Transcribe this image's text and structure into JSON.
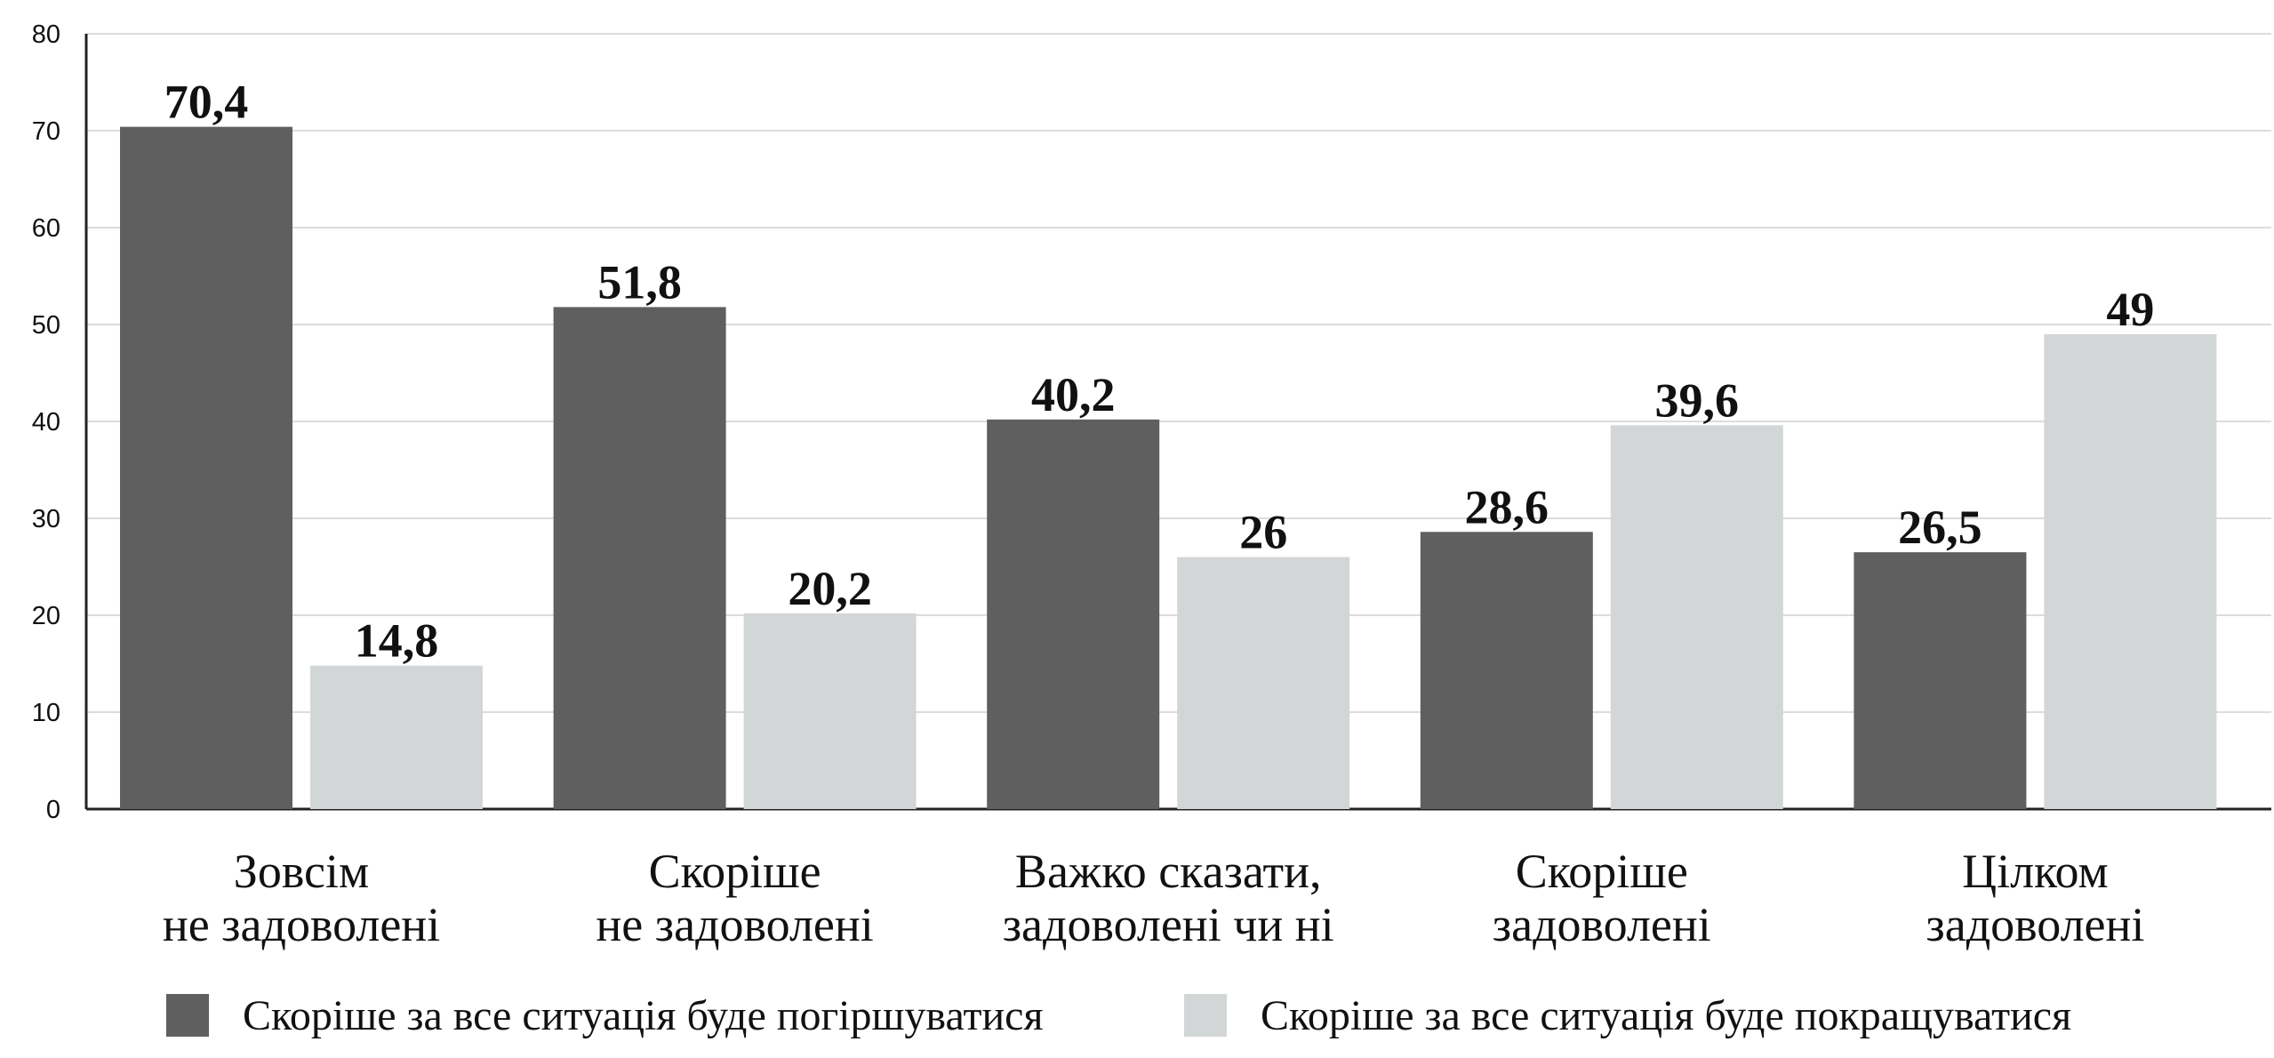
{
  "chart_data": {
    "type": "bar",
    "title": "",
    "xlabel": "",
    "ylabel": "",
    "ylim": [
      0,
      80
    ],
    "yticks": [
      0,
      10,
      20,
      30,
      40,
      50,
      60,
      70,
      80
    ],
    "grid": true,
    "legend_position": "bottom",
    "categories": [
      [
        "Зовсім",
        "не задоволені"
      ],
      [
        "Скоріше",
        "не задоволені"
      ],
      [
        "Важко сказати,",
        "задоволені чи ні"
      ],
      [
        "Скоріше",
        "задоволені"
      ],
      [
        "Цілком",
        "задоволені"
      ]
    ],
    "series": [
      {
        "name": "Скоріше за все ситуація буде погіршуватися",
        "color": "#5f5f5f",
        "values": [
          70.4,
          51.8,
          40.2,
          28.6,
          26.5
        ],
        "labels": [
          "70,4",
          "51,8",
          "40,2",
          "28,6",
          "26,5"
        ]
      },
      {
        "name": "Скоріше за все ситуація буде покращуватися",
        "color": "#d3d6d7",
        "values": [
          14.8,
          20.2,
          26,
          39.6,
          49
        ],
        "labels": [
          "14,8",
          "20,2",
          "26",
          "39,6",
          "49"
        ]
      }
    ]
  }
}
